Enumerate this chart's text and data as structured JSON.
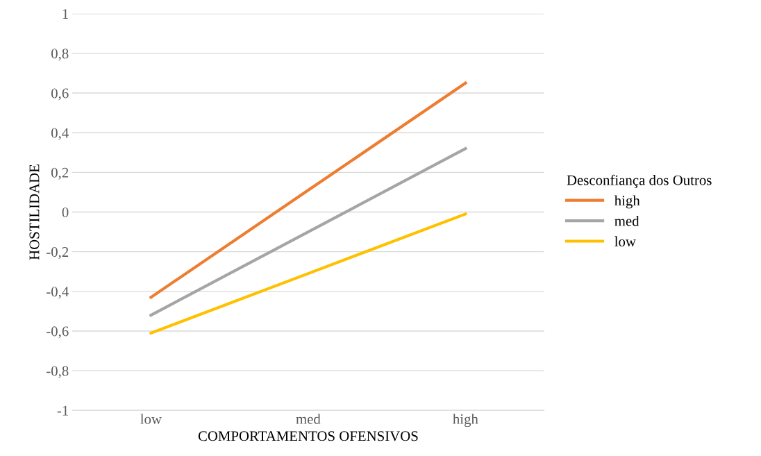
{
  "chart_data": {
    "type": "line",
    "xlabel": "COMPORTAMENTOS OFENSIVOS",
    "ylabel": "HOSTILIDADE",
    "legend_title": "Desconfiança dos Outros",
    "categories": [
      "low",
      "med",
      "high"
    ],
    "series": [
      {
        "name": "high",
        "color": "#ed7d31",
        "values": [
          -0.43,
          0.11,
          0.65
        ]
      },
      {
        "name": "med",
        "color": "#a5a5a5",
        "values": [
          -0.52,
          -0.1,
          0.32
        ]
      },
      {
        "name": "low",
        "color": "#ffc000",
        "values": [
          -0.61,
          -0.31,
          -0.01
        ]
      }
    ],
    "ylim": [
      -1,
      1
    ],
    "yticks": [
      {
        "value": -1,
        "label": "-1"
      },
      {
        "value": -0.8,
        "label": "-0,8"
      },
      {
        "value": -0.6,
        "label": "-0,6"
      },
      {
        "value": -0.4,
        "label": "-0,4"
      },
      {
        "value": -0.2,
        "label": "-0,2"
      },
      {
        "value": 0,
        "label": "0"
      },
      {
        "value": 0.2,
        "label": "0,2"
      },
      {
        "value": 0.4,
        "label": "0,4"
      },
      {
        "value": 0.6,
        "label": "0,6"
      },
      {
        "value": 0.8,
        "label": "0,8"
      },
      {
        "value": 1,
        "label": "1"
      }
    ],
    "grid": "y",
    "legend": "right",
    "marker": "none",
    "line_style": "solid"
  }
}
